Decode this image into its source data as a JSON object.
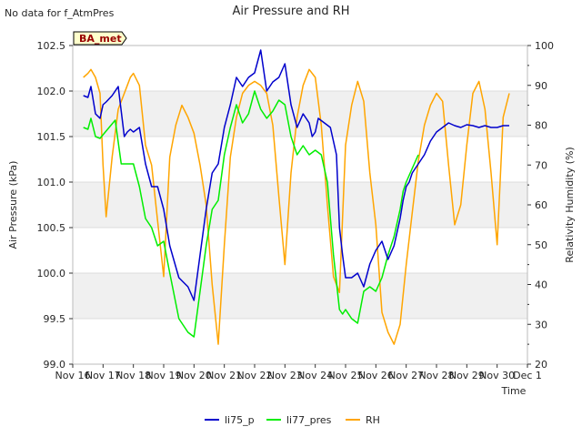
{
  "chart_data": {
    "type": "line",
    "title": "Air Pressure and RH",
    "notice": "No data for f_AtmPres",
    "site_label": "BA_met",
    "xlabel": "Time",
    "ylabel_left": "Air Pressure (kPa)",
    "ylabel_right": "Relativity Humidity (%)",
    "x_range": [
      "2024-11-16",
      "2024-12-01"
    ],
    "x_ticks": [
      "Nov 16",
      "Nov 17",
      "Nov 18",
      "Nov 19",
      "Nov 20",
      "Nov 21",
      "Nov 22",
      "Nov 23",
      "Nov 24",
      "Nov 25",
      "Nov 26",
      "Nov 27",
      "Nov 28",
      "Nov 29",
      "Nov 30",
      "Dec 1"
    ],
    "ylim_left": [
      99.0,
      102.5
    ],
    "ylim_right": [
      20,
      100
    ],
    "y_ticks_left": [
      "99.0",
      "99.5",
      "100.0",
      "100.5",
      "101.0",
      "101.5",
      "102.0",
      "102.5"
    ],
    "y_ticks_right": [
      "20",
      "30",
      "40",
      "50",
      "60",
      "70",
      "80",
      "90",
      "100"
    ],
    "grid": true,
    "legend_position": "bottom-center",
    "series": [
      {
        "name": "li75_p",
        "axis": "left",
        "color": "#0000cc",
        "x": [
          0.35,
          0.5,
          0.6,
          0.75,
          0.9,
          1.0,
          1.1,
          1.3,
          1.5,
          1.7,
          1.8,
          1.9,
          2.0,
          2.2,
          2.4,
          2.6,
          2.8,
          3.0,
          3.2,
          3.5,
          3.8,
          4.0,
          4.2,
          4.4,
          4.6,
          4.8,
          5.0,
          5.2,
          5.4,
          5.6,
          5.8,
          6.0,
          6.2,
          6.4,
          6.6,
          6.8,
          7.0,
          7.2,
          7.4,
          7.6,
          7.8,
          7.9,
          8.0,
          8.1,
          8.3,
          8.5,
          8.7,
          8.8,
          8.9,
          9.0,
          9.2,
          9.4,
          9.6,
          9.8,
          10.0,
          10.2,
          10.4,
          10.6,
          10.8,
          10.9,
          11.0,
          11.1,
          11.2,
          11.4,
          11.6,
          11.8,
          12.0,
          12.2,
          12.4,
          12.6,
          12.8,
          13.0,
          13.2,
          13.4,
          13.6,
          13.8,
          14.0,
          14.2,
          14.3,
          14.4
        ],
        "y": [
          101.95,
          101.93,
          102.05,
          101.75,
          101.7,
          101.85,
          101.88,
          101.95,
          102.05,
          101.5,
          101.55,
          101.58,
          101.55,
          101.6,
          101.2,
          100.95,
          100.95,
          100.7,
          100.3,
          99.95,
          99.85,
          99.7,
          100.2,
          100.7,
          101.1,
          101.2,
          101.6,
          101.85,
          102.15,
          102.05,
          102.15,
          102.2,
          102.45,
          102.0,
          102.1,
          102.15,
          102.3,
          101.85,
          101.6,
          101.75,
          101.65,
          101.5,
          101.55,
          101.7,
          101.65,
          101.6,
          101.3,
          100.5,
          100.2,
          99.95,
          99.95,
          100.0,
          99.85,
          100.1,
          100.25,
          100.35,
          100.15,
          100.3,
          100.6,
          100.8,
          100.95,
          101.0,
          101.1,
          101.2,
          101.3,
          101.45,
          101.55,
          101.6,
          101.65,
          101.62,
          101.6,
          101.63,
          101.62,
          101.6,
          101.62,
          101.6,
          101.6,
          101.62,
          101.62,
          101.62
        ]
      },
      {
        "name": "li77_pres",
        "axis": "left",
        "color": "#00ee00",
        "x": [
          0.35,
          0.5,
          0.6,
          0.75,
          0.9,
          1.0,
          1.2,
          1.4,
          1.6,
          1.7,
          1.8,
          2.0,
          2.2,
          2.4,
          2.6,
          2.8,
          3.0,
          3.2,
          3.5,
          3.8,
          4.0,
          4.2,
          4.4,
          4.6,
          4.8,
          5.0,
          5.2,
          5.4,
          5.6,
          5.8,
          6.0,
          6.2,
          6.4,
          6.6,
          6.8,
          7.0,
          7.2,
          7.4,
          7.6,
          7.8,
          8.0,
          8.2,
          8.4,
          8.6,
          8.8,
          8.9,
          9.0,
          9.2,
          9.4,
          9.6,
          9.8,
          10.0,
          10.2,
          10.4,
          10.6,
          10.8,
          10.9,
          11.0,
          11.2,
          11.4
        ],
        "y": [
          101.6,
          101.58,
          101.7,
          101.5,
          101.48,
          101.52,
          101.6,
          101.68,
          101.2,
          101.2,
          101.2,
          101.2,
          100.95,
          100.6,
          100.5,
          100.3,
          100.35,
          100.0,
          99.5,
          99.35,
          99.3,
          99.8,
          100.3,
          100.7,
          100.8,
          101.3,
          101.6,
          101.85,
          101.65,
          101.75,
          102.0,
          101.8,
          101.7,
          101.78,
          101.9,
          101.85,
          101.5,
          101.3,
          101.4,
          101.3,
          101.35,
          101.3,
          101.0,
          100.2,
          99.6,
          99.55,
          99.6,
          99.5,
          99.45,
          99.8,
          99.85,
          99.8,
          99.95,
          100.2,
          100.4,
          100.7,
          100.9,
          101.0,
          101.15,
          101.3
        ]
      },
      {
        "name": "RH",
        "axis": "right",
        "color": "#ffa500",
        "x": [
          0.35,
          0.5,
          0.6,
          0.75,
          0.9,
          1.0,
          1.1,
          1.3,
          1.5,
          1.7,
          1.8,
          1.9,
          2.0,
          2.2,
          2.4,
          2.6,
          2.8,
          3.0,
          3.2,
          3.4,
          3.6,
          3.8,
          4.0,
          4.2,
          4.4,
          4.6,
          4.8,
          5.0,
          5.2,
          5.4,
          5.6,
          5.8,
          6.0,
          6.2,
          6.4,
          6.6,
          6.8,
          7.0,
          7.2,
          7.4,
          7.6,
          7.8,
          8.0,
          8.2,
          8.4,
          8.6,
          8.8,
          9.0,
          9.2,
          9.4,
          9.6,
          9.8,
          10.0,
          10.2,
          10.4,
          10.6,
          10.8,
          11.0,
          11.2,
          11.4,
          11.6,
          11.8,
          12.0,
          12.2,
          12.4,
          12.6,
          12.8,
          13.0,
          13.2,
          13.4,
          13.6,
          13.8,
          14.0,
          14.2,
          14.4
        ],
        "y": [
          92,
          93,
          94,
          92,
          88,
          70,
          57,
          72,
          84,
          88,
          90,
          92,
          93,
          90,
          75,
          70,
          56,
          42,
          72,
          80,
          85,
          82,
          78,
          70,
          60,
          40,
          25,
          50,
          72,
          82,
          88,
          90,
          91,
          90,
          88,
          80,
          62,
          45,
          68,
          82,
          90,
          94,
          92,
          80,
          60,
          42,
          38,
          75,
          85,
          91,
          86,
          68,
          55,
          33,
          28,
          25,
          30,
          45,
          58,
          71,
          80,
          85,
          88,
          86,
          70,
          55,
          60,
          75,
          88,
          91,
          84,
          68,
          50,
          82,
          88
        ]
      }
    ],
    "legend": [
      "li75_p",
      "li77_pres",
      "RH"
    ]
  }
}
